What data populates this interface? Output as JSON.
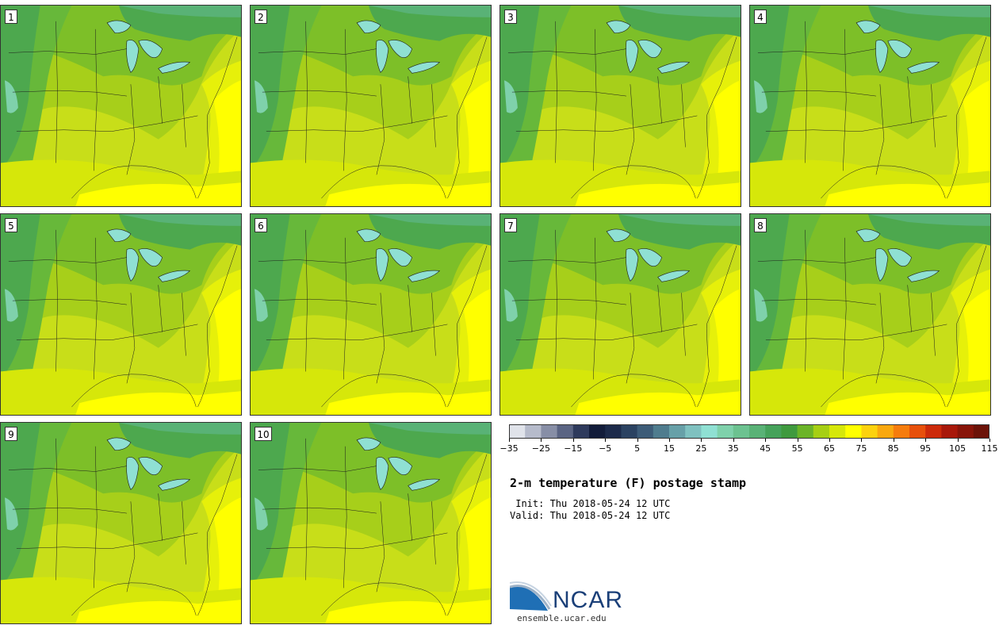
{
  "panels": [
    {
      "label": "1"
    },
    {
      "label": "2"
    },
    {
      "label": "3"
    },
    {
      "label": "4"
    },
    {
      "label": "5"
    },
    {
      "label": "6"
    },
    {
      "label": "7"
    },
    {
      "label": "8"
    },
    {
      "label": "9"
    },
    {
      "label": "10"
    }
  ],
  "colorbar": {
    "colors": [
      "#e0e3ea",
      "#b6bbcb",
      "#878ea6",
      "#5a6483",
      "#2e3a5c",
      "#121c3a",
      "#1c2a4a",
      "#2b4261",
      "#3d5c78",
      "#4f7c8e",
      "#67a0a8",
      "#7fc1c0",
      "#8fe0d3",
      "#7fd1ab",
      "#6cc290",
      "#59b276",
      "#45a25a",
      "#3f9a3e",
      "#6bb428",
      "#a6cf14",
      "#d6e70a",
      "#ffff00",
      "#fcd20e",
      "#f9a80f",
      "#f57c0d",
      "#e7500b",
      "#cc2a0a",
      "#a8180a",
      "#881409",
      "#6b1208"
    ],
    "tick_labels": [
      "−35",
      "−25",
      "−15",
      "−5",
      "5",
      "15",
      "25",
      "35",
      "45",
      "55",
      "65",
      "75",
      "85",
      "95",
      "105",
      "115"
    ]
  },
  "title": "2-m temperature (F) postage stamp",
  "init": " Init: Thu 2018-05-24 12 UTC",
  "valid": "Valid: Thu 2018-05-24 12 UTC",
  "logo_text": "NCAR",
  "url": "ensemble.ucar.edu"
}
